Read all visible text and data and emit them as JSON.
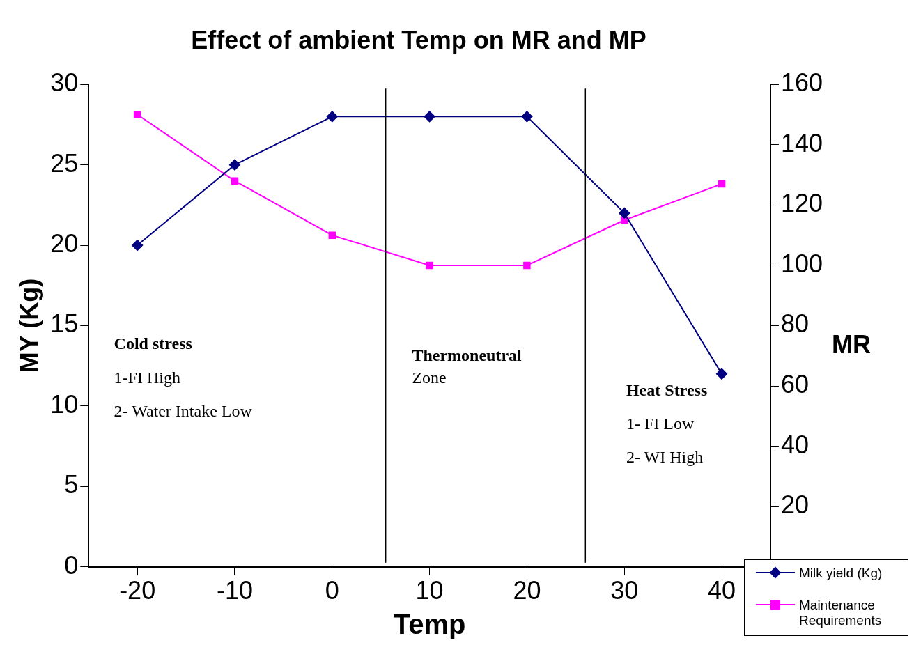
{
  "chart_data": {
    "type": "line",
    "title": "Effect of ambient Temp on MR and MP",
    "xlabel": "Temp",
    "ylabel": "MY (Kg)",
    "y2label": "MR",
    "x": [
      -20,
      -10,
      0,
      10,
      20,
      30,
      40
    ],
    "xlim": [
      -25,
      45
    ],
    "xticks": [
      -20,
      -10,
      0,
      10,
      20,
      30,
      40
    ],
    "ylim": [
      0,
      30
    ],
    "yticks": [
      0,
      5,
      10,
      15,
      20,
      25,
      30
    ],
    "y2lim": [
      0,
      160
    ],
    "y2ticks": [
      20,
      40,
      60,
      80,
      100,
      120,
      140,
      160
    ],
    "series": [
      {
        "name": "Milk yield (Kg)",
        "color": "#000080",
        "marker": "diamond",
        "values": [
          20,
          25,
          28,
          28,
          28,
          22,
          12
        ]
      },
      {
        "name": "Maintenance Requirements",
        "color": "#ff00ff",
        "marker": "square",
        "axis": "y2",
        "values": [
          150,
          128,
          110,
          100,
          100,
          115,
          127
        ]
      }
    ],
    "ref_lines": [
      {
        "axis": "x",
        "value": 5.5,
        "color": "#000000"
      },
      {
        "axis": "x",
        "value": 26,
        "color": "#000000"
      }
    ],
    "annotations": [
      "Cold stress\n1-FI High\n2- Water Intake Low",
      "Thermoneutral\nZone",
      "Heat Stress\n1- FI Low\n2- WI High"
    ],
    "grid": false,
    "legend": "bottom right",
    "line_style": "solid"
  }
}
